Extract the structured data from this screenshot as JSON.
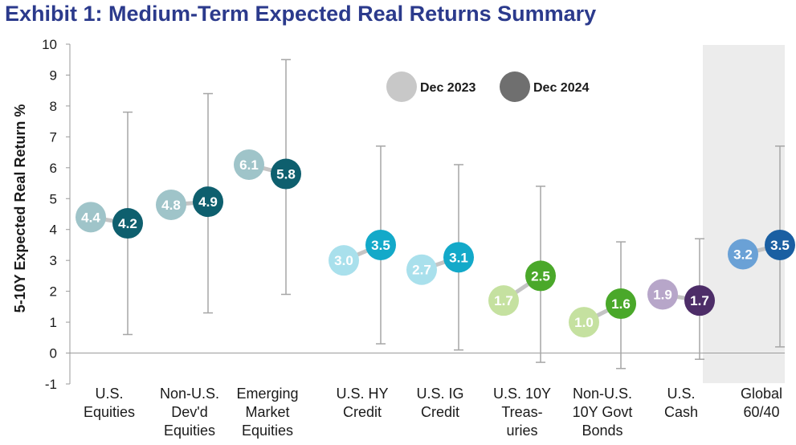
{
  "chart_data": {
    "type": "scatter",
    "title": "Exhibit 1: Medium-Term Expected Real Returns Summary",
    "ylabel": "5-10Y Expected Real Return %",
    "xlabel": "",
    "ylim": [
      -1,
      10
    ],
    "yticks": [
      -1,
      0,
      1,
      2,
      3,
      4,
      5,
      6,
      7,
      8,
      9,
      10
    ],
    "legend": [
      "Dec 2023",
      "Dec 2024"
    ],
    "legend_colors": [
      "#c8c8c8",
      "#6f6f6f"
    ],
    "categories": [
      {
        "label": [
          "U.S.",
          "Equities"
        ],
        "dec2023": 4.4,
        "dec2024": 4.2,
        "range": [
          0.6,
          7.8
        ],
        "color2023": "#9fc4c9",
        "color2024": "#0e5f6e"
      },
      {
        "label": [
          "Non-U.S.",
          "Dev'd",
          "Equities"
        ],
        "dec2023": 4.8,
        "dec2024": 4.9,
        "range": [
          1.3,
          8.4
        ],
        "color2023": "#9fc4c9",
        "color2024": "#0e5f6e"
      },
      {
        "label": [
          "Emerging",
          "Market",
          "Equities"
        ],
        "dec2023": 6.1,
        "dec2024": 5.8,
        "range": [
          1.9,
          9.5
        ],
        "color2023": "#9fc4c9",
        "color2024": "#0e5f6e"
      },
      {
        "label": [
          "U.S. HY",
          "Credit"
        ],
        "dec2023": 3.0,
        "dec2024": 3.5,
        "range": [
          0.3,
          6.7
        ],
        "color2023": "#a9e0ec",
        "color2024": "#13a9c9"
      },
      {
        "label": [
          "U.S. IG",
          "Credit"
        ],
        "dec2023": 2.7,
        "dec2024": 3.1,
        "range": [
          0.1,
          6.1
        ],
        "color2023": "#a9e0ec",
        "color2024": "#13a9c9"
      },
      {
        "label": [
          "U.S. 10Y",
          "Treas-",
          "uries"
        ],
        "dec2023": 1.7,
        "dec2024": 2.5,
        "range": [
          -0.3,
          5.4
        ],
        "color2023": "#c5e1a0",
        "color2024": "#4aa82a"
      },
      {
        "label": [
          "Non-U.S.",
          "10Y Govt",
          "Bonds"
        ],
        "dec2023": 1.0,
        "dec2024": 1.6,
        "range": [
          -0.5,
          3.6
        ],
        "color2023": "#c5e1a0",
        "color2024": "#4aa82a"
      },
      {
        "label": [
          "U.S.",
          "Cash"
        ],
        "dec2023": 1.9,
        "dec2024": 1.7,
        "range": [
          -0.2,
          3.7
        ],
        "color2023": "#b7a6c9",
        "color2024": "#4d2d68"
      },
      {
        "label": [
          "Global",
          "60/40"
        ],
        "dec2023": 3.2,
        "dec2024": 3.5,
        "range": [
          0.2,
          6.7
        ],
        "color2023": "#6aa1d6",
        "color2024": "#1a5fa2"
      }
    ]
  }
}
